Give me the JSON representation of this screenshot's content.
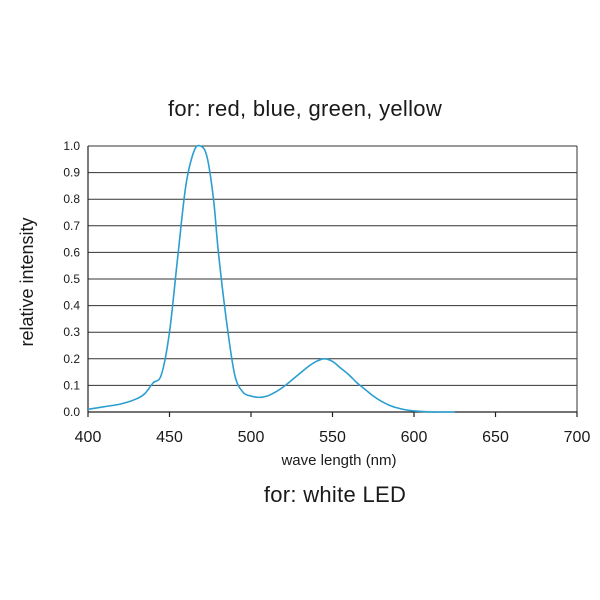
{
  "chart_data": {
    "type": "line",
    "title": "for: red, blue, green, yellow",
    "caption": "for: white LED",
    "xlabel": "wave length (nm)",
    "ylabel": "relative intensity",
    "xlim": [
      400,
      700
    ],
    "ylim": [
      0,
      1.0
    ],
    "x_ticks": [
      "400",
      "450",
      "500",
      "550",
      "600",
      "650",
      "700"
    ],
    "y_ticks": [
      "0.0",
      "0.1",
      "0.2",
      "0.3",
      "0.4",
      "0.5",
      "0.6",
      "0.7",
      "0.8",
      "0.9",
      "1.0"
    ],
    "grid": "horizontal",
    "line_color": "#2a9fd0",
    "series": [
      {
        "x": [
          400,
          410,
          420,
          430,
          435,
          440,
          445,
          450,
          455,
          460,
          465,
          469,
          473,
          477,
          480,
          485,
          490,
          495,
          500,
          505,
          510,
          515,
          520,
          525,
          530,
          535,
          540,
          545,
          550,
          555,
          560,
          565,
          570,
          575,
          580,
          585,
          590,
          595,
          600,
          605,
          610,
          615,
          620,
          625
        ],
        "y": [
          0.01,
          0.02,
          0.03,
          0.05,
          0.07,
          0.11,
          0.14,
          0.3,
          0.58,
          0.85,
          0.98,
          1.0,
          0.96,
          0.8,
          0.6,
          0.34,
          0.14,
          0.075,
          0.06,
          0.055,
          0.06,
          0.075,
          0.095,
          0.12,
          0.145,
          0.17,
          0.19,
          0.2,
          0.19,
          0.165,
          0.14,
          0.11,
          0.085,
          0.06,
          0.04,
          0.025,
          0.015,
          0.008,
          0.004,
          0.002,
          0.0,
          0.0,
          0.0,
          0.0
        ]
      }
    ]
  }
}
